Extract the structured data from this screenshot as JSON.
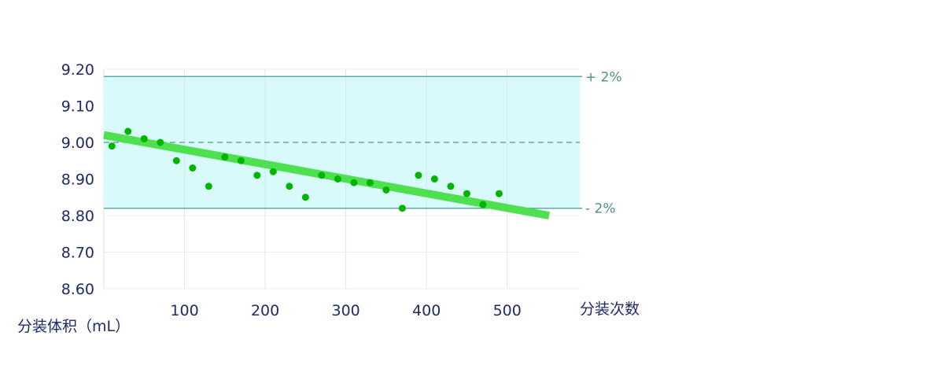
{
  "chart_data": {
    "type": "scatter",
    "title": "",
    "xlabel": "分装次数",
    "ylabel": "分装体积（mL）",
    "xlim": [
      0,
      590
    ],
    "ylim": [
      8.6,
      9.2
    ],
    "x_ticks": [
      100,
      200,
      300,
      400,
      500
    ],
    "x_tick_labels": [
      "100",
      "200",
      "300",
      "400",
      "500"
    ],
    "y_ticks": [
      8.6,
      8.7,
      8.8,
      8.9,
      9.0,
      9.1,
      9.2
    ],
    "y_tick_labels": [
      "8.60",
      "8.70",
      "8.80",
      "8.90",
      "9.00",
      "9.10",
      "9.20"
    ],
    "grid": true,
    "target_value": 9.0,
    "tolerance_band": {
      "upper": 9.18,
      "lower": 8.82,
      "upper_label": "+ 2%",
      "lower_label": "- 2%",
      "fill_color": "#d9fafb",
      "line_color": "#5fa8a3"
    },
    "series": [
      {
        "points": [
          [
            10,
            8.99
          ],
          [
            30,
            9.03
          ],
          [
            50,
            9.01
          ],
          [
            70,
            9.0
          ],
          [
            90,
            8.95
          ],
          [
            110,
            8.93
          ],
          [
            130,
            8.88
          ],
          [
            150,
            8.96
          ],
          [
            170,
            8.95
          ],
          [
            190,
            8.91
          ],
          [
            210,
            8.92
          ],
          [
            230,
            8.88
          ],
          [
            250,
            8.85
          ],
          [
            270,
            8.91
          ],
          [
            290,
            8.9
          ],
          [
            310,
            8.89
          ],
          [
            330,
            8.89
          ],
          [
            350,
            8.87
          ],
          [
            370,
            8.82
          ],
          [
            390,
            8.91
          ],
          [
            410,
            8.9
          ],
          [
            430,
            8.88
          ],
          [
            450,
            8.86
          ],
          [
            470,
            8.83
          ],
          [
            490,
            8.86
          ]
        ],
        "color": "#00b400"
      }
    ],
    "trend_line": {
      "x": [
        0,
        552
      ],
      "y": [
        9.02,
        8.8
      ],
      "color": "#4ee04e"
    }
  }
}
